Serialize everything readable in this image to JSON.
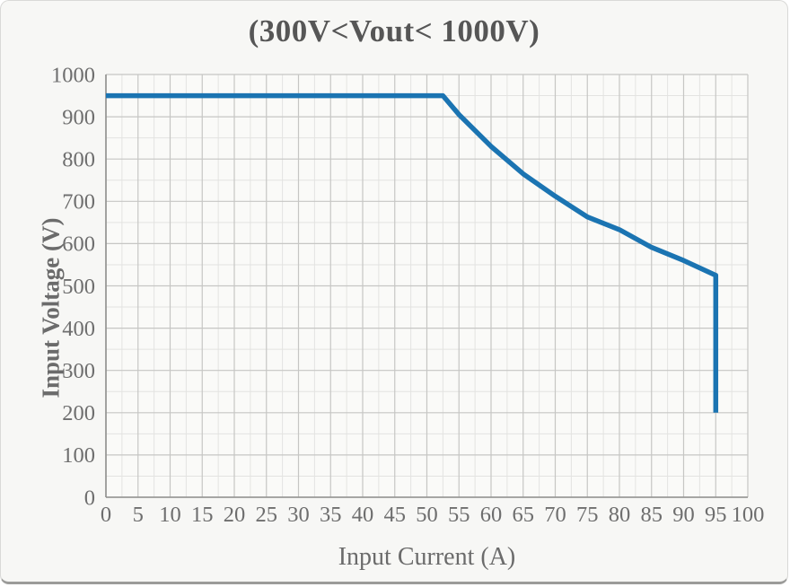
{
  "title": "(300V<Vout< 1000V)",
  "colors": {
    "line": "#1b74b2",
    "grid_minor": "#e3e3e1",
    "grid_major": "#c6c6c4",
    "axis": "#8f8f8d",
    "tick_text": "#6e6e6e",
    "title_text": "#565656",
    "card_bg": "#f7f7f5",
    "plot_bg": "#fafaf8"
  },
  "chart_data": {
    "type": "line",
    "title": "(300V<Vout< 1000V)",
    "xlabel": "Input Current (A)",
    "ylabel": "Input Voltage (V)",
    "xlim": [
      0,
      100
    ],
    "ylim": [
      0,
      1000
    ],
    "x_ticks": [
      0,
      5,
      10,
      15,
      20,
      25,
      30,
      35,
      40,
      45,
      50,
      55,
      60,
      65,
      70,
      75,
      80,
      85,
      90,
      95,
      100
    ],
    "y_ticks": [
      0,
      100,
      200,
      300,
      400,
      500,
      600,
      700,
      800,
      900,
      1000
    ],
    "x_minor_step": 2.5,
    "y_minor_step": 50,
    "grid": true,
    "legend": "none",
    "series": [
      {
        "name": "input-voltage-vs-current-limit",
        "points": [
          [
            0,
            950
          ],
          [
            52.5,
            950
          ],
          [
            55,
            905
          ],
          [
            60,
            830
          ],
          [
            65,
            765
          ],
          [
            70,
            712
          ],
          [
            75,
            663
          ],
          [
            80,
            633
          ],
          [
            85,
            591
          ],
          [
            90,
            560
          ],
          [
            95,
            525
          ],
          [
            95,
            200
          ]
        ]
      }
    ]
  }
}
